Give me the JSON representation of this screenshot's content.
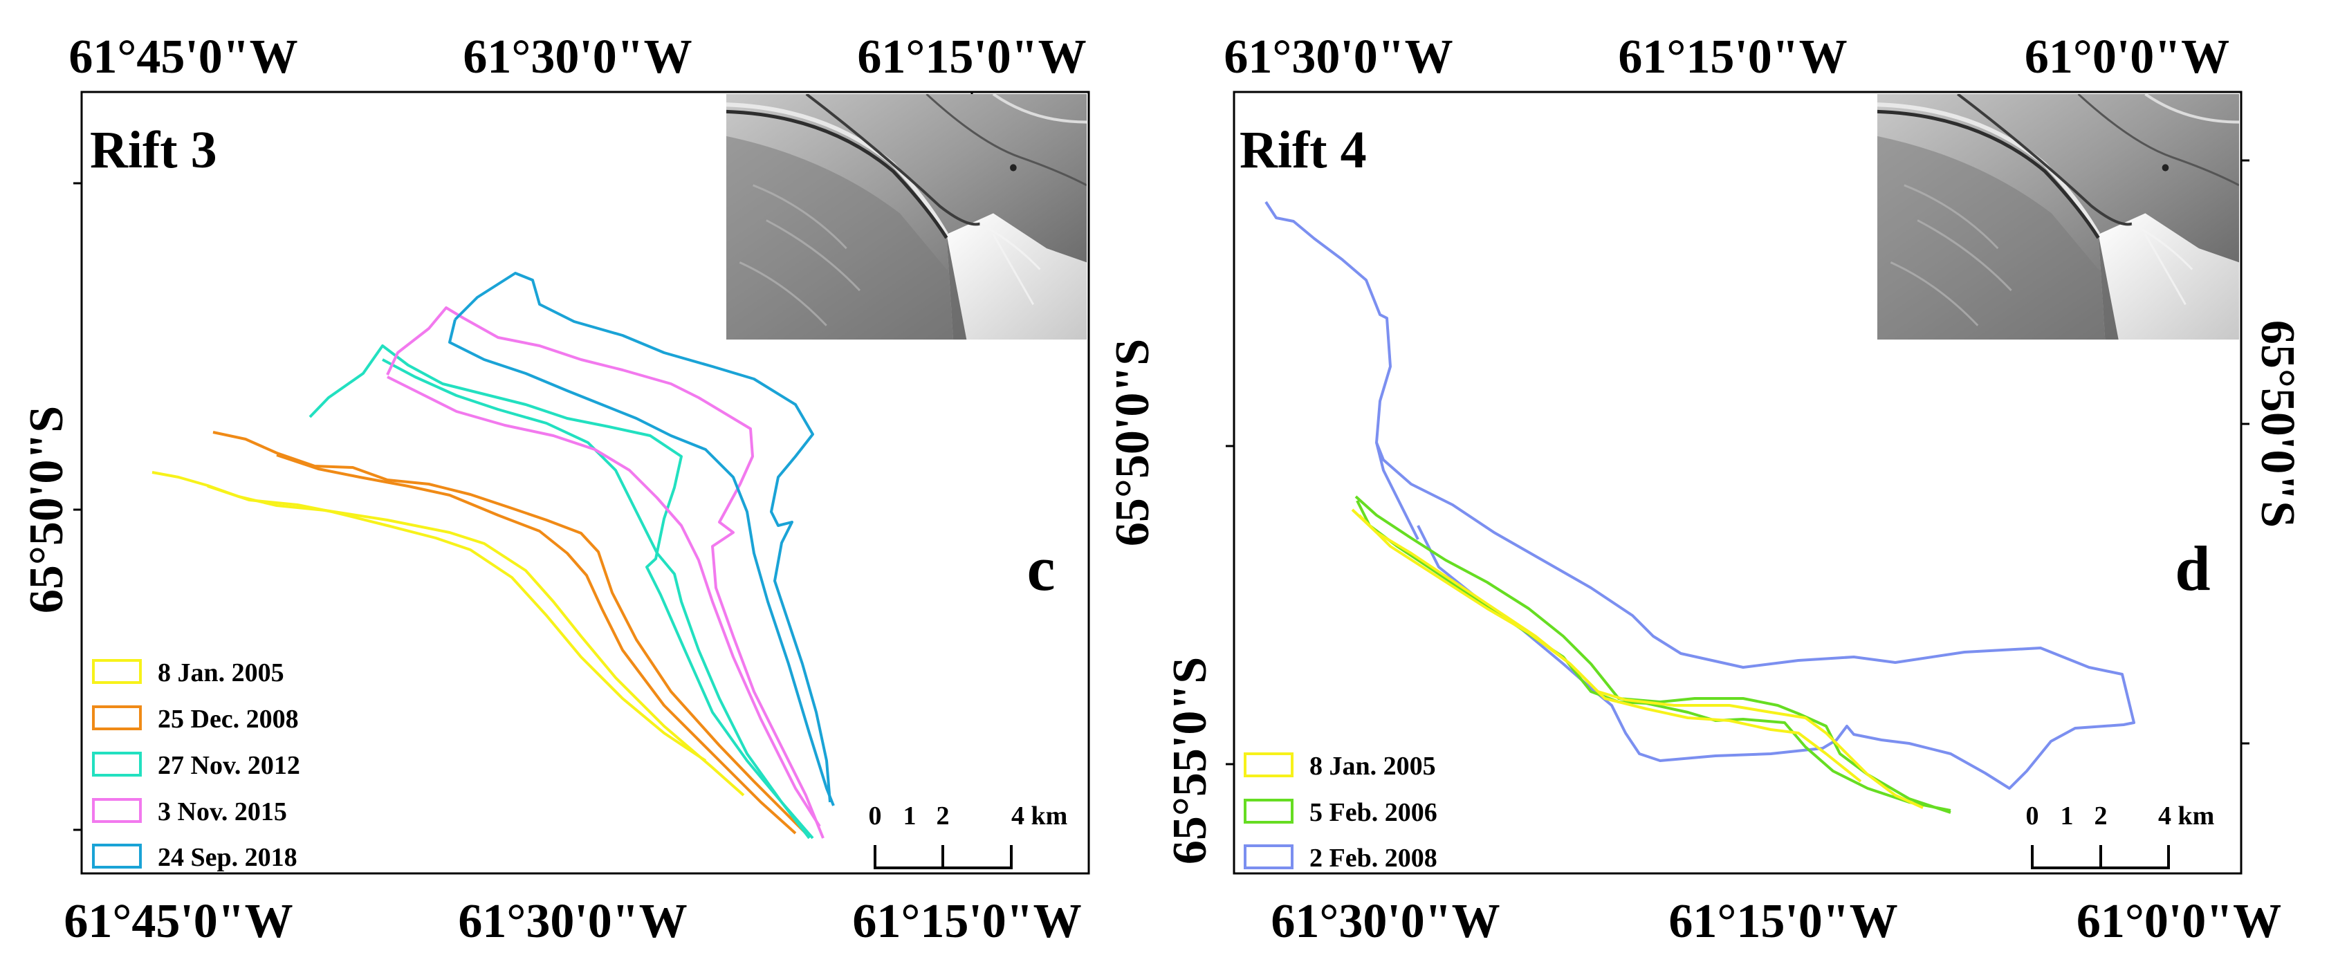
{
  "figure": {
    "panels": [
      {
        "id": "c",
        "title": "Rift 3",
        "letter": "c",
        "top_ticks": [
          "61°45'0\"W",
          "61°30'0\"W",
          "61°15'0\"W"
        ],
        "bottom_ticks": [
          "61°45'0\"W",
          "61°30'0\"W",
          "61°15'0\"W"
        ],
        "left_tick": "65°50'0\"S",
        "left_tick_lower": "",
        "right_tick": "",
        "right_tick_lower": "",
        "scale_labels": [
          "0",
          "1",
          "2",
          "4 km"
        ],
        "legend": [
          {
            "label": "8 Jan. 2005",
            "color": "#f7f21a"
          },
          {
            "label": "25 Dec. 2008",
            "color": "#f08a16"
          },
          {
            "label": "27 Nov. 2012",
            "color": "#22e0c0"
          },
          {
            "label": "3 Nov. 2015",
            "color": "#f279ee"
          },
          {
            "label": "24 Sep. 2018",
            "color": "#1aa3d6"
          }
        ]
      },
      {
        "id": "d",
        "title": "Rift 4",
        "letter": "d",
        "top_ticks": [
          "61°30'0\"W",
          "61°15'0\"W",
          "61°0'0\"W"
        ],
        "bottom_ticks": [
          "61°30'0\"W",
          "61°15'0\"W",
          "61°0'0\"W"
        ],
        "left_tick": "65°50'0\"S",
        "left_tick_lower": "65°55'0\"S",
        "right_tick": "65°50'0\"S",
        "right_tick_lower": "",
        "scale_labels": [
          "0",
          "1",
          "2",
          "4 km"
        ],
        "legend": [
          {
            "label": "8 Jan. 2005",
            "color": "#f7f21a"
          },
          {
            "label": "5 Feb. 2006",
            "color": "#66dd22"
          },
          {
            "label": "2 Feb. 2008",
            "color": "#7b8ff0"
          }
        ]
      }
    ]
  }
}
